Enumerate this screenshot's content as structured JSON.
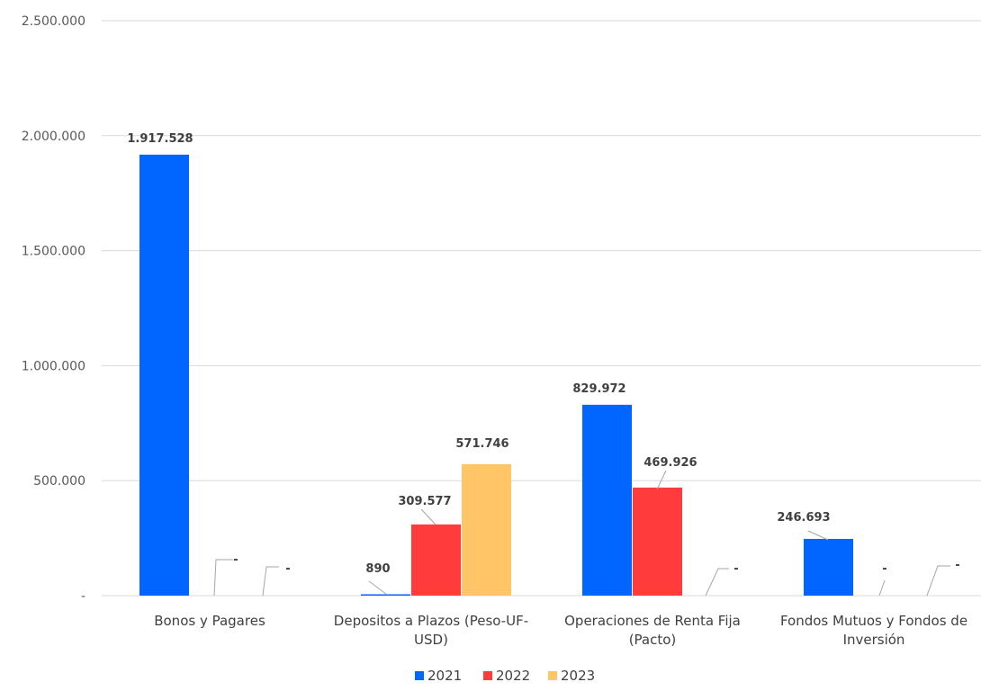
{
  "chart_data": {
    "type": "bar",
    "categories": [
      "Bonos y Pagares",
      "Depositos a Plazos (Peso-UF-USD)",
      "Operaciones de Renta Fija (Pacto)",
      "Fondos Mutuos y Fondos de Inversión"
    ],
    "category_lines": [
      [
        "Bonos y Pagares"
      ],
      [
        "Depositos a Plazos (Peso-UF-",
        "USD)"
      ],
      [
        "Operaciones de Renta Fija",
        "(Pacto)"
      ],
      [
        "Fondos Mutuos y Fondos de",
        "Inversión"
      ]
    ],
    "series": [
      {
        "name": "2021",
        "color": "#0066ff",
        "values": [
          1917528,
          890,
          829972,
          246693
        ],
        "labels": [
          "1.917.528",
          "890",
          "829.972",
          "246.693"
        ]
      },
      {
        "name": "2022",
        "color": "#ff3b3b",
        "values": [
          0,
          309577,
          469926,
          0
        ],
        "labels": [
          "-",
          "309.577",
          "469.926",
          "-"
        ]
      },
      {
        "name": "2023",
        "color": "#ffc566",
        "values": [
          0,
          571746,
          0,
          0
        ],
        "labels": [
          "-",
          "571.746",
          "-",
          "-"
        ]
      }
    ],
    "yticks": [
      {
        "value": 0,
        "label": "-"
      },
      {
        "value": 500000,
        "label": "500.000"
      },
      {
        "value": 1000000,
        "label": "1.000.000"
      },
      {
        "value": 1500000,
        "label": "1.500.000"
      },
      {
        "value": 2000000,
        "label": "2.000.000"
      },
      {
        "value": 2500000,
        "label": "2.500.000"
      }
    ],
    "ylim": [
      0,
      2500000
    ],
    "grid": true,
    "legend_position": "bottom",
    "title": "",
    "xlabel": "",
    "ylabel": ""
  }
}
